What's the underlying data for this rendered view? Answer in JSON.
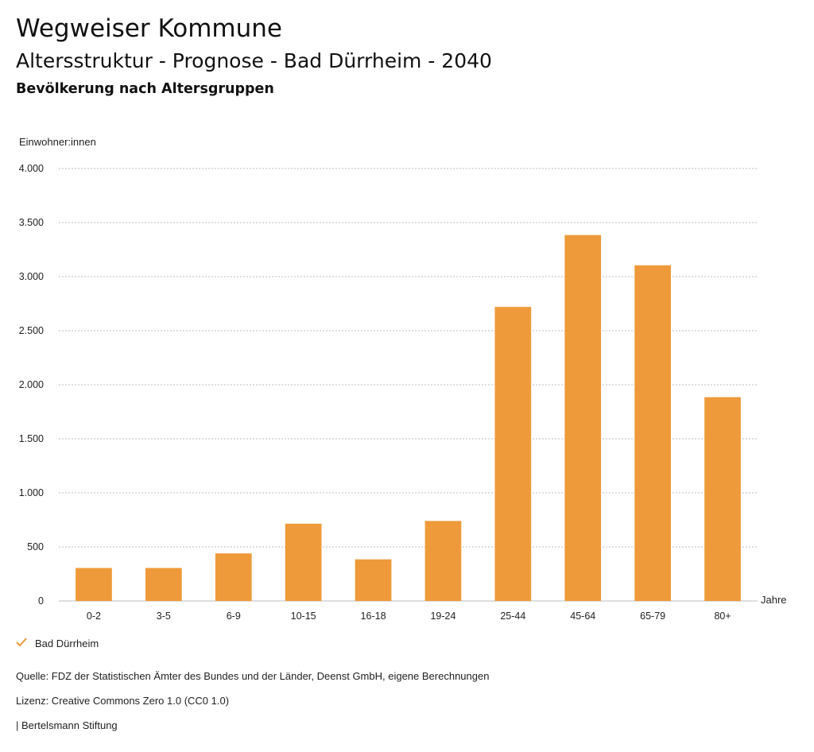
{
  "header": {
    "app_title": "Wegweiser Kommune",
    "chart_title": "Altersstruktur - Prognose - Bad Dürrheim - 2040",
    "chart_subtitle": "Bevölkerung nach Altersgruppen"
  },
  "chart_data": {
    "type": "bar",
    "ylabel": "Einwohner:innen",
    "xlabel": "Jahre",
    "categories": [
      "0-2",
      "3-5",
      "6-9",
      "10-15",
      "16-18",
      "19-24",
      "25-44",
      "45-64",
      "65-79",
      "80+"
    ],
    "series": [
      {
        "name": "Bad Dürrheim",
        "values": [
          305,
          305,
          440,
          715,
          385,
          740,
          2720,
          3385,
          3105,
          1885
        ]
      }
    ],
    "ylim": [
      0,
      4000
    ],
    "yticks": [
      0,
      500,
      1000,
      1500,
      2000,
      2500,
      3000,
      3500,
      4000
    ],
    "ytick_labels": [
      "0",
      "500",
      "1.000",
      "1.500",
      "2.000",
      "2.500",
      "3.000",
      "3.500",
      "4.000"
    ],
    "grid": true,
    "legend_position": "bottom-left",
    "bar_color": "#EE9A3A"
  },
  "legend": {
    "label": "Bad Dürrheim"
  },
  "footer": {
    "source": "Quelle: FDZ der Statistischen Ämter des Bundes und der Länder, Deenst GmbH, eigene Berechnungen",
    "license": "Lizenz: Creative Commons Zero 1.0 (CC0 1.0)",
    "publisher": "| Bertelsmann Stiftung"
  }
}
